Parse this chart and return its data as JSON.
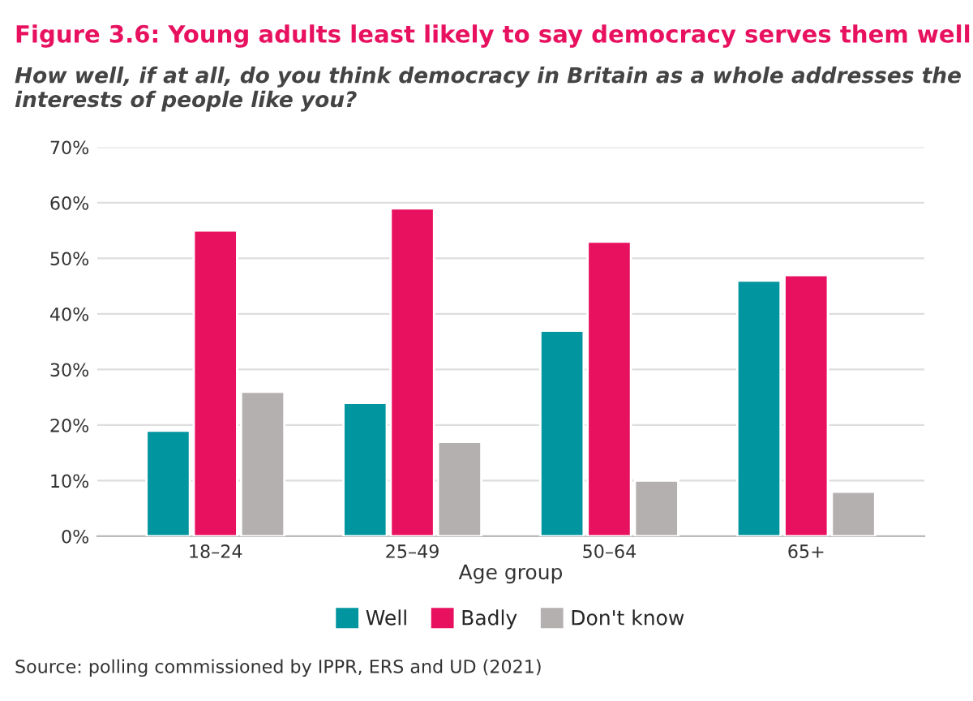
{
  "chart_data": {
    "type": "bar",
    "title": "Figure 3.6: Young adults least likely to say democracy serves them well",
    "subtitle": "How well, if at all, do you think democracy in Britain as a whole addresses the interests of people like you?",
    "xlabel": "Age group",
    "categories": [
      "18–24",
      "25–49",
      "50–64",
      "65+"
    ],
    "series": [
      {
        "name": "Well",
        "color": "#00959f",
        "values": [
          19,
          24,
          37,
          46
        ]
      },
      {
        "name": "Badly",
        "color": "#e8115f",
        "values": [
          55,
          59,
          53,
          47
        ]
      },
      {
        "name": "Don't know",
        "color": "#b5b0b0",
        "values": [
          26,
          17,
          10,
          8
        ]
      }
    ],
    "ylim": [
      0,
      70
    ],
    "yticks": [
      {
        "value": 0,
        "label": "0%"
      },
      {
        "value": 10,
        "label": "10%"
      },
      {
        "value": 20,
        "label": "20%"
      },
      {
        "value": 30,
        "label": "30%"
      },
      {
        "value": 40,
        "label": "40%"
      },
      {
        "value": 50,
        "label": "50%"
      },
      {
        "value": 60,
        "label": "60%"
      },
      {
        "value": 70,
        "label": "70%"
      }
    ],
    "grid": "y",
    "legend": "bottom",
    "annotations": [
      "Source: polling commissioned by IPPR, ERS and UD (2021)"
    ]
  }
}
